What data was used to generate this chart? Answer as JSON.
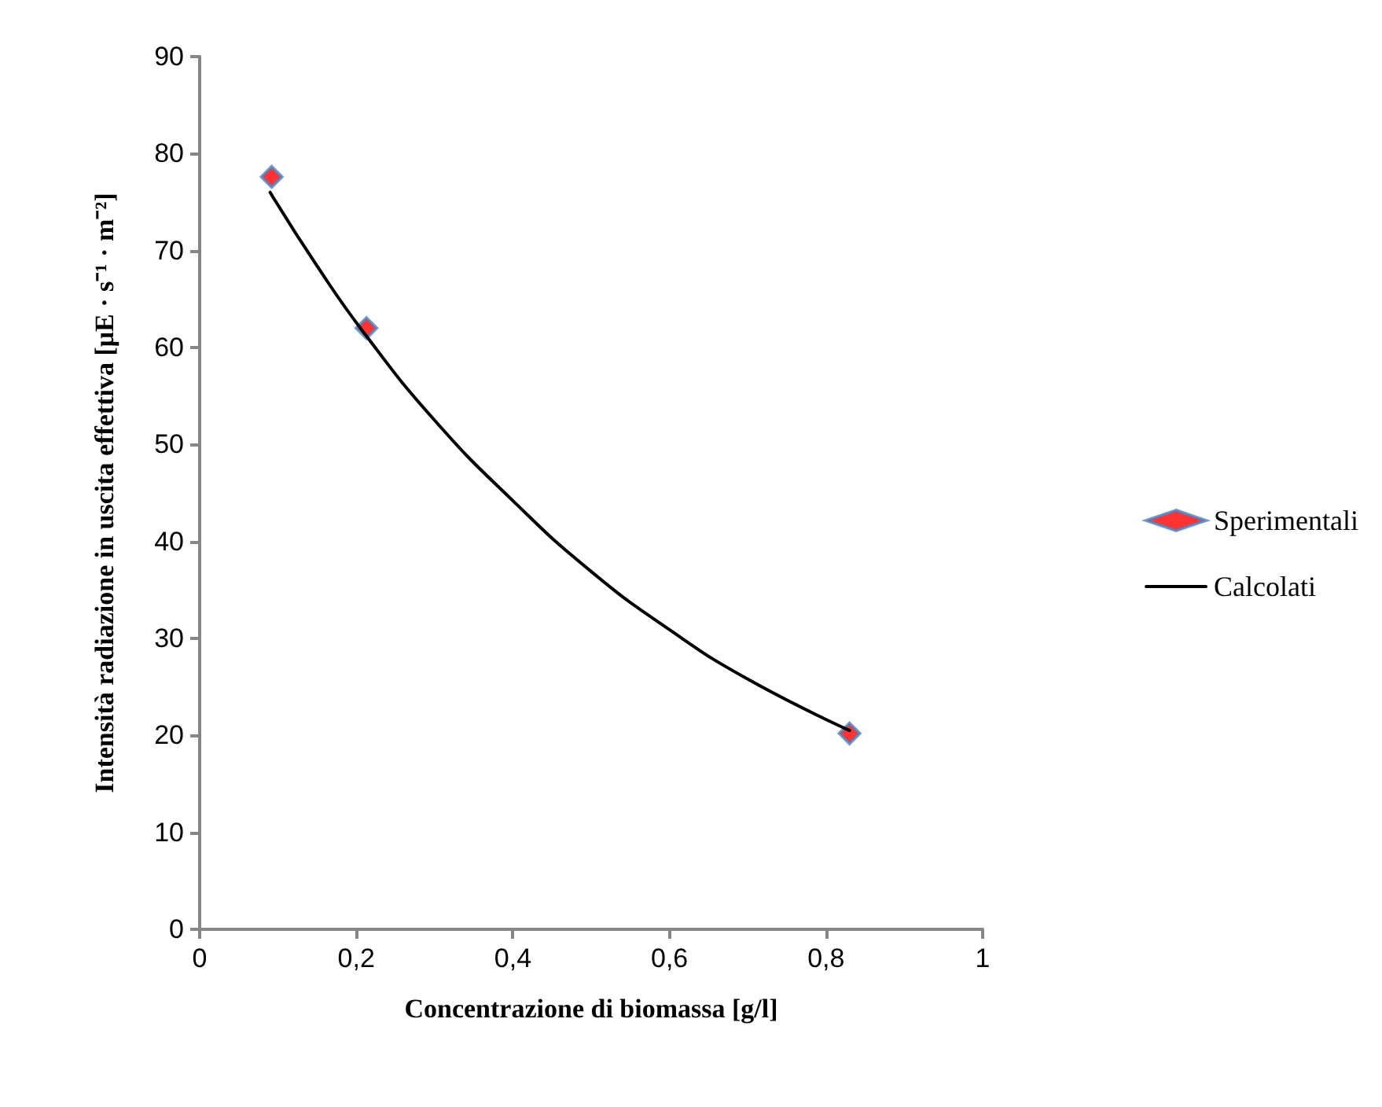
{
  "chart_data": {
    "type": "scatter",
    "xlabel": "Concentrazione di biomassa [g/l]",
    "ylabel": "Intensità radiazione in uscita effettiva [μE · s⁻¹ · m⁻²]",
    "xlim": [
      0,
      1
    ],
    "xticks": [
      {
        "value": 0,
        "label": "0"
      },
      {
        "value": 0.2,
        "label": "0,2"
      },
      {
        "value": 0.4,
        "label": "0,4"
      },
      {
        "value": 0.6,
        "label": "0,6"
      },
      {
        "value": 0.8,
        "label": "0,8"
      },
      {
        "value": 1,
        "label": "1"
      }
    ],
    "ylim": [
      0,
      90
    ],
    "yticks": [
      0,
      10,
      20,
      30,
      40,
      50,
      60,
      70,
      80,
      90
    ],
    "grid": false,
    "legend": "right",
    "series": [
      {
        "name": "Sperimentali",
        "marker": "diamond",
        "color": "#ff0000",
        "x": [
          0.092,
          0.213,
          0.83
        ],
        "values": [
          77.6,
          62,
          20.2
        ]
      },
      {
        "name": "Calcolati",
        "type": "line",
        "marker": "none",
        "line_style": "solid",
        "color": "#000000",
        "x": [
          0.09,
          0.15,
          0.21,
          0.3,
          0.4,
          0.5,
          0.6,
          0.7,
          0.83
        ],
        "values": [
          76,
          68.4,
          61.5,
          52.5,
          44.2,
          36.9,
          30.9,
          25.8,
          20.5
        ]
      }
    ]
  }
}
